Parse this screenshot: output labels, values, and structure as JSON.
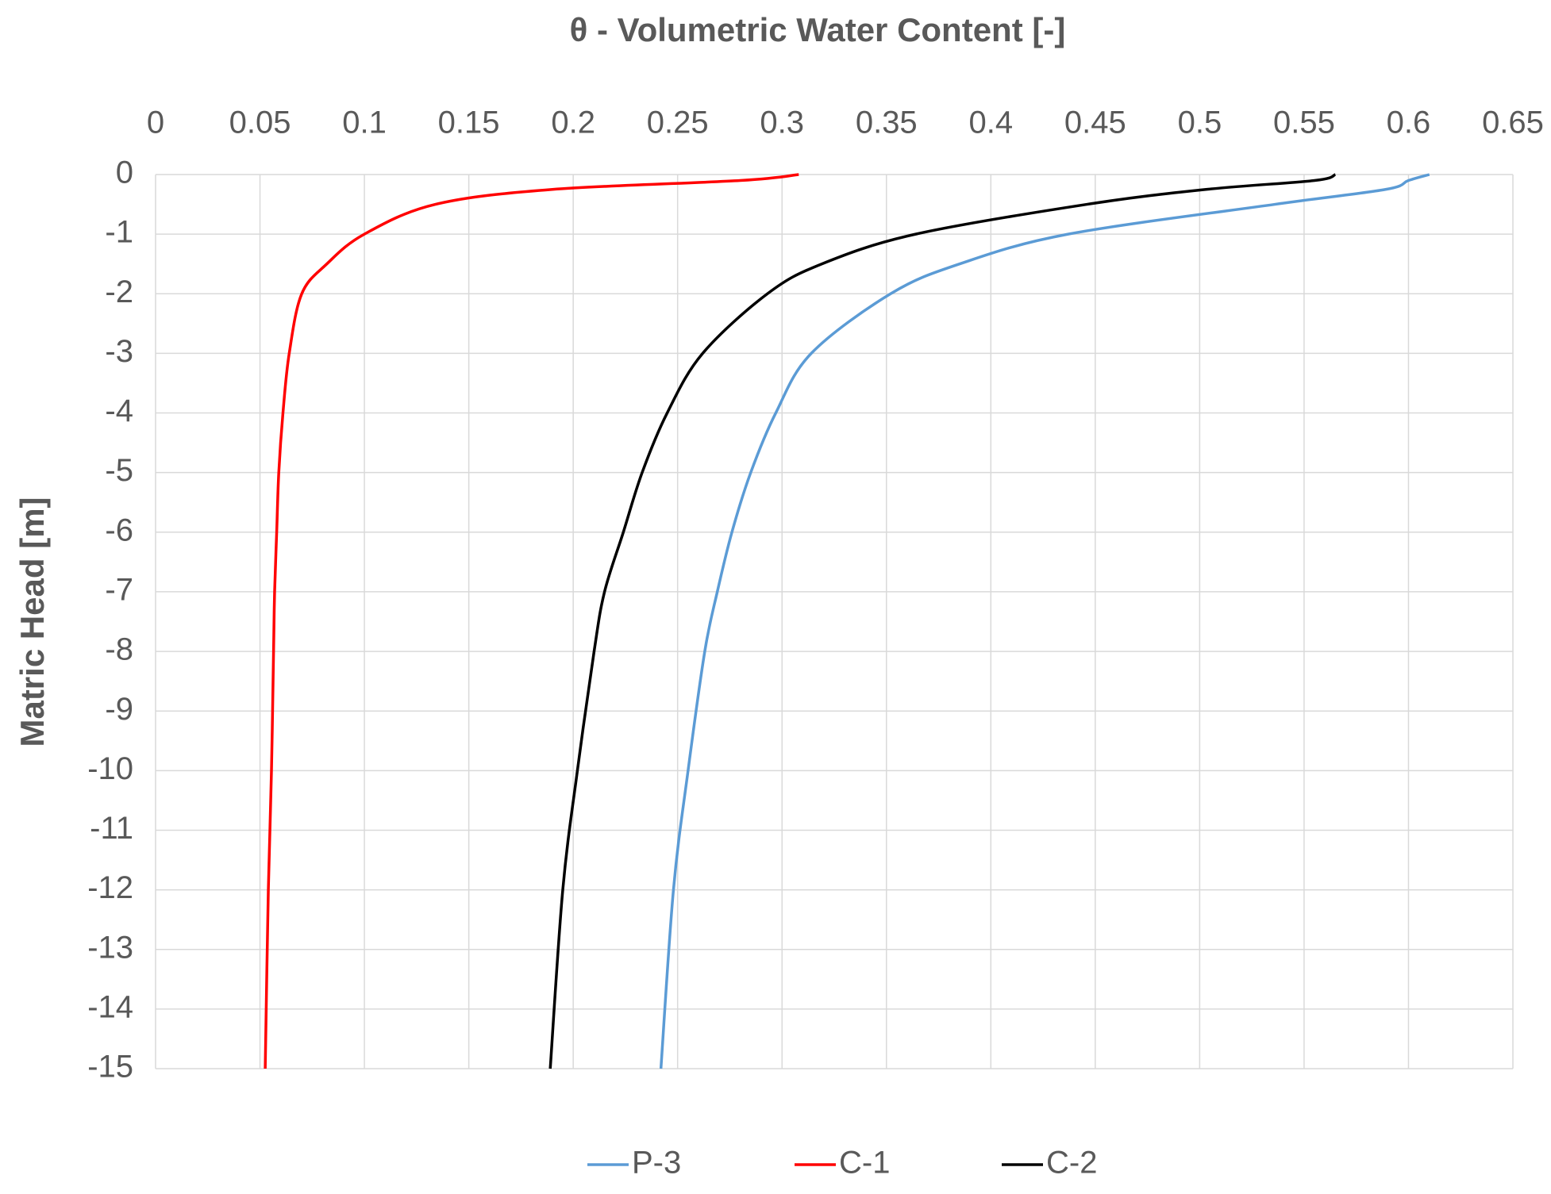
{
  "chart_data": {
    "type": "line",
    "title": "θ - Volumetric Water Content [-]",
    "y_label": "Matric Head [m]",
    "y": [
      0,
      -0.1,
      -0.25,
      -0.5,
      -1,
      -1.5,
      -2,
      -3,
      -4,
      -5,
      -6,
      -7,
      -8,
      -10,
      -12,
      -15
    ],
    "series": [
      {
        "name": "P-3",
        "color": "#5b9bd5",
        "values": [
          0.61,
          0.6,
          0.589,
          0.536,
          0.437,
          0.385,
          0.352,
          0.314,
          0.297,
          0.285,
          0.276,
          0.269,
          0.263,
          0.255,
          0.248,
          0.242
        ]
      },
      {
        "name": "C-1",
        "color": "#ff0000",
        "values": [
          0.308,
          0.28,
          0.19,
          0.134,
          0.1,
          0.082,
          0.07,
          0.064,
          0.061,
          0.059,
          0.058,
          0.057,
          0.0565,
          0.0555,
          0.054,
          0.0525
        ]
      },
      {
        "name": "C-2",
        "color": "#000000",
        "values": [
          0.565,
          0.555,
          0.503,
          0.446,
          0.364,
          0.319,
          0.293,
          0.262,
          0.245,
          0.233,
          0.224,
          0.215,
          0.21,
          0.202,
          0.195,
          0.189
        ]
      }
    ],
    "xlim": [
      0,
      0.65
    ],
    "xticks": [
      0,
      0.05,
      0.1,
      0.15,
      0.2,
      0.25,
      0.3,
      0.35,
      0.4,
      0.45,
      0.5,
      0.55,
      0.6,
      0.65
    ],
    "ylim": [
      -15,
      0
    ],
    "yticks": [
      0,
      -1,
      -2,
      -3,
      -4,
      -5,
      -6,
      -7,
      -8,
      -9,
      -10,
      -11,
      -12,
      -13,
      -14,
      -15
    ],
    "x_axis_position": "top",
    "grid": true,
    "legend": "bottom"
  }
}
